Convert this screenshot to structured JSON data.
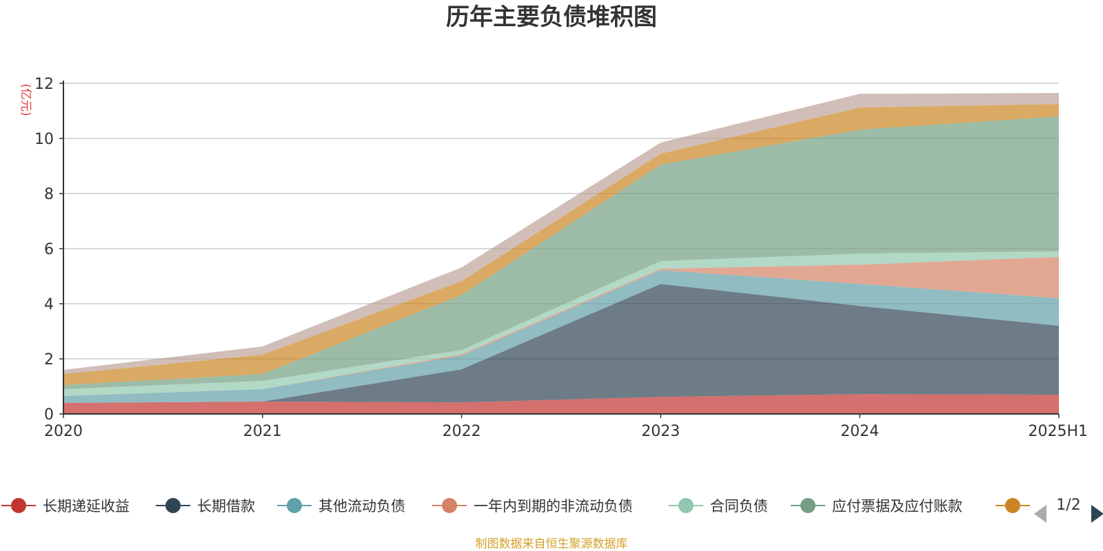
{
  "chart_data": {
    "type": "area",
    "stacked": true,
    "title": "历年主要负债堆积图",
    "unit_label": "(亿元)",
    "categories": [
      "2020",
      "2021",
      "2022",
      "2023",
      "2024",
      "2025H1"
    ],
    "ylim": [
      0,
      12
    ],
    "yticks": [
      "0",
      "2",
      "4",
      "6",
      "8",
      "10",
      "12"
    ],
    "grid": true,
    "legend_position": "bottom",
    "series": [
      {
        "name": "长期递延收益",
        "color": "#c23531",
        "values": [
          0.4,
          0.45,
          0.42,
          0.62,
          0.72,
          0.7
        ]
      },
      {
        "name": "长期借款",
        "color": "#2f4554",
        "values": [
          0.0,
          0.0,
          1.2,
          4.1,
          3.2,
          2.5
        ]
      },
      {
        "name": "其他流动负债",
        "color": "#61a0a8",
        "values": [
          0.25,
          0.45,
          0.5,
          0.5,
          0.8,
          1.0
        ]
      },
      {
        "name": "一年内到期的非流动负债",
        "color": "#d48265",
        "values": [
          0.0,
          0.0,
          0.05,
          0.05,
          0.7,
          1.5
        ]
      },
      {
        "name": "合同负债",
        "color": "#91c7ae",
        "values": [
          0.25,
          0.3,
          0.15,
          0.28,
          0.4,
          0.2
        ]
      },
      {
        "name": "应付票据及应付账款",
        "color": "#749f83",
        "values": [
          0.15,
          0.25,
          2.0,
          3.5,
          4.5,
          4.9
        ]
      },
      {
        "name": "",
        "color": "#ca8622",
        "values": [
          0.4,
          0.7,
          0.5,
          0.4,
          0.8,
          0.45
        ]
      },
      {
        "name": "",
        "color": "#bda29a",
        "values": [
          0.15,
          0.3,
          0.5,
          0.4,
          0.5,
          0.4
        ]
      }
    ]
  },
  "legend": {
    "page_indicator": "1/2"
  },
  "footer": {
    "source_text": "制图数据来自恒生聚源数据库"
  }
}
